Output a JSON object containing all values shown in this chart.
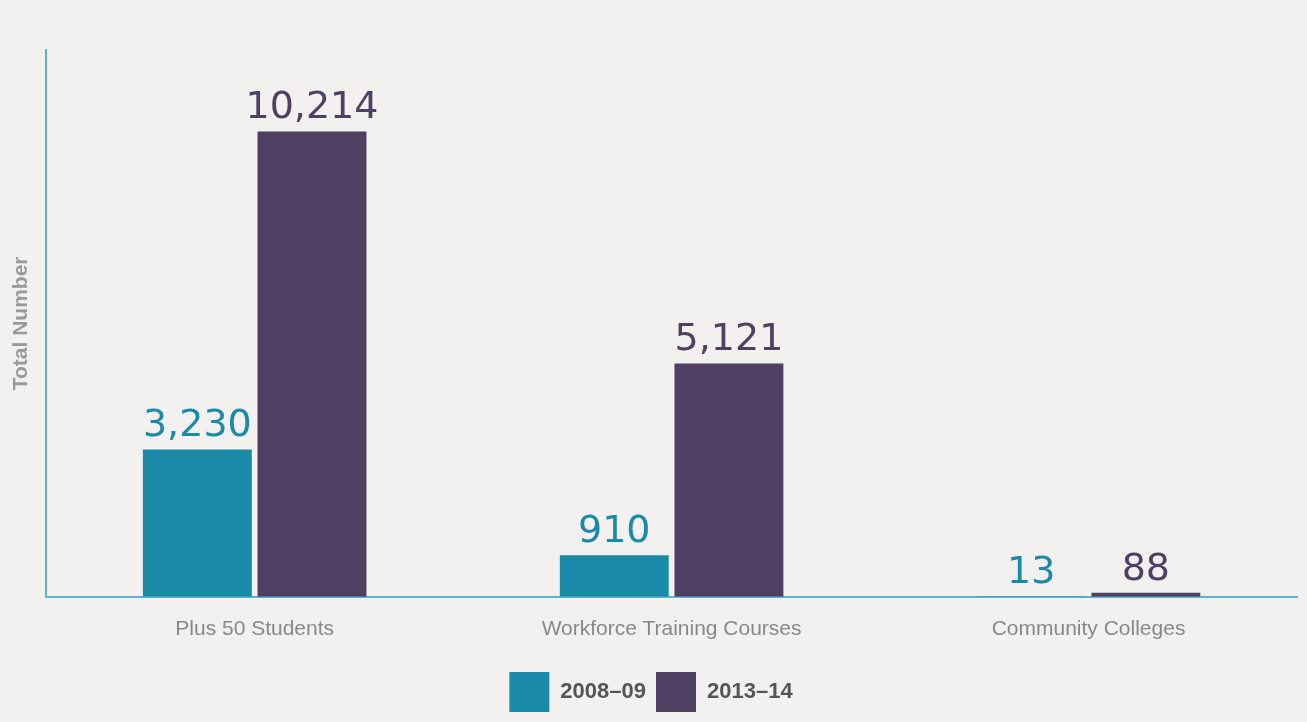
{
  "chart_data": {
    "type": "bar",
    "ylabel": "Total Number",
    "categories": [
      "Plus 50 Students",
      "Workforce Training Courses",
      "Community Colleges"
    ],
    "series": [
      {
        "name": "2008–09",
        "color": "#1a8aa8",
        "values": [
          3230,
          910,
          13
        ],
        "value_labels": [
          "3,230",
          "910",
          "13"
        ]
      },
      {
        "name": "2013–14",
        "color": "#4e3f63",
        "values": [
          10214,
          5121,
          88
        ],
        "value_labels": [
          "10,214",
          "5,121",
          "88"
        ]
      }
    ],
    "tick_labels": "x",
    "grid": false,
    "legend": "bottom"
  }
}
